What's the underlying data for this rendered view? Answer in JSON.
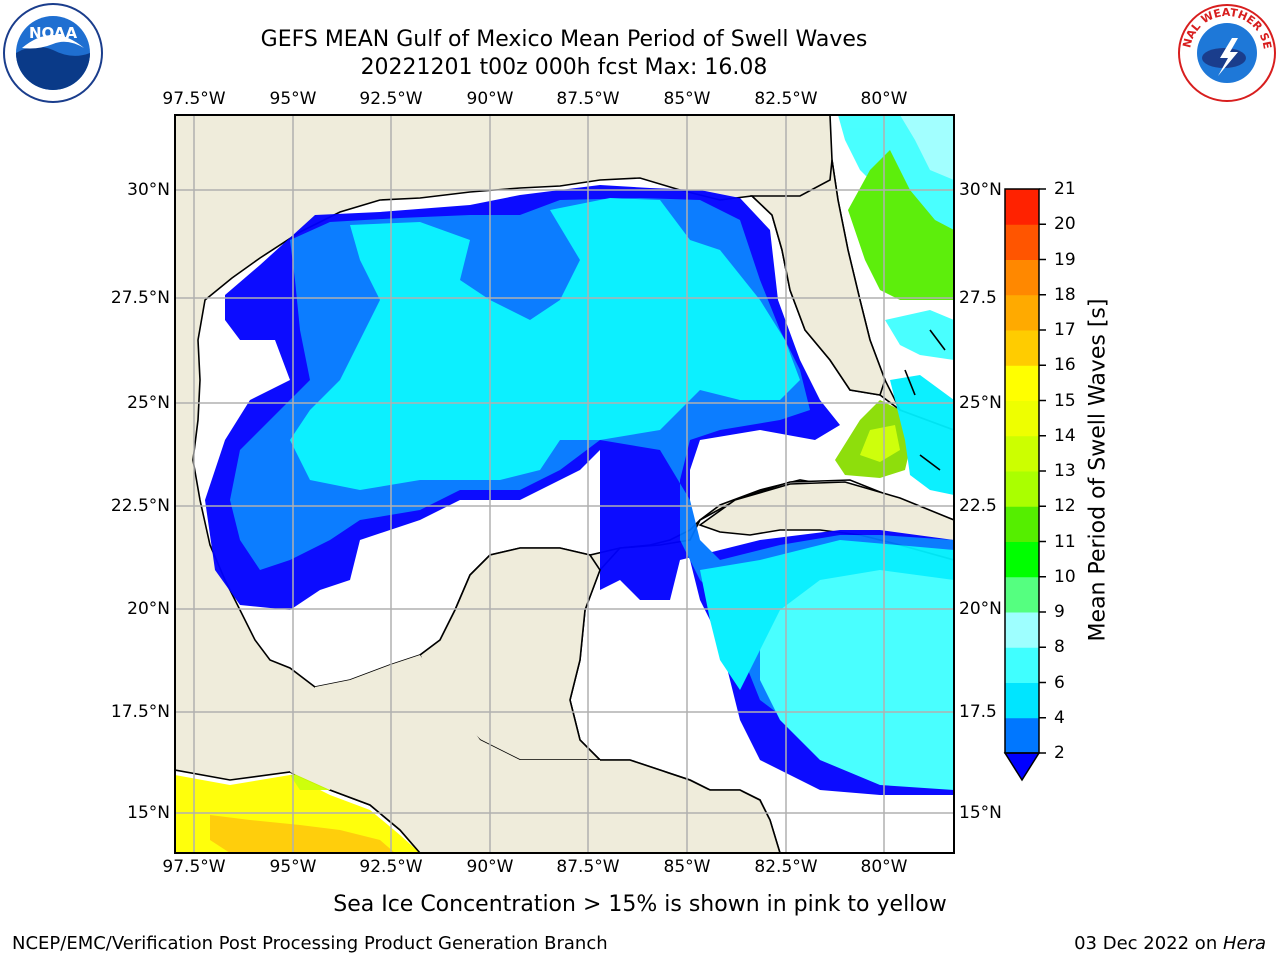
{
  "title": {
    "line1": "GEFS MEAN Gulf of Mexico Mean Period of Swell Waves",
    "line2": "20221201 t00z 000h fcst   Max: 16.08"
  },
  "logos": {
    "left": "NOAA",
    "right": "NATIONAL WEATHER SERVICE"
  },
  "map": {
    "lon_ticks": [
      "97.5°W",
      "95°W",
      "92.5°W",
      "90°W",
      "87.5°W",
      "85°W",
      "82.5°W",
      "80°W"
    ],
    "lat_ticks_left": [
      "30°N",
      "27.5°N",
      "25°N",
      "22.5°N",
      "20°N",
      "17.5°N",
      "15°N"
    ],
    "lat_ticks_right": [
      "30°N",
      "27.5",
      "25°N",
      "22.5",
      "20°N",
      "17.5",
      "15°N"
    ],
    "colors": {
      "land": "#efecdb",
      "water_no_swell": "#ffffff",
      "grid": "#b0b0b0"
    }
  },
  "colorbar": {
    "label": "Mean Period of Swell Waves [s]",
    "ticks": [
      "2",
      "4",
      "6",
      "8",
      "9",
      "10",
      "11",
      "12",
      "13",
      "14",
      "15",
      "16",
      "17",
      "18",
      "19",
      "20",
      "21"
    ],
    "colors": [
      "#0077ff",
      "#00e5ff",
      "#40ffff",
      "#9effff",
      "#55ff80",
      "#00ff00",
      "#55ee00",
      "#aaff00",
      "#ccff00",
      "#eeff00",
      "#ffff00",
      "#ffcc00",
      "#ffaa00",
      "#ff8800",
      "#ff5500",
      "#ff2200",
      "#ff0000"
    ],
    "under_color": "#0000ff"
  },
  "subtitle": "Sea Ice Concentration > 15% is shown in pink to yellow",
  "footer": {
    "left": "NCEP/EMC/Verification Post Processing Product Generation Branch",
    "right_date": "03 Dec 2022 on ",
    "right_host": "Hera"
  }
}
